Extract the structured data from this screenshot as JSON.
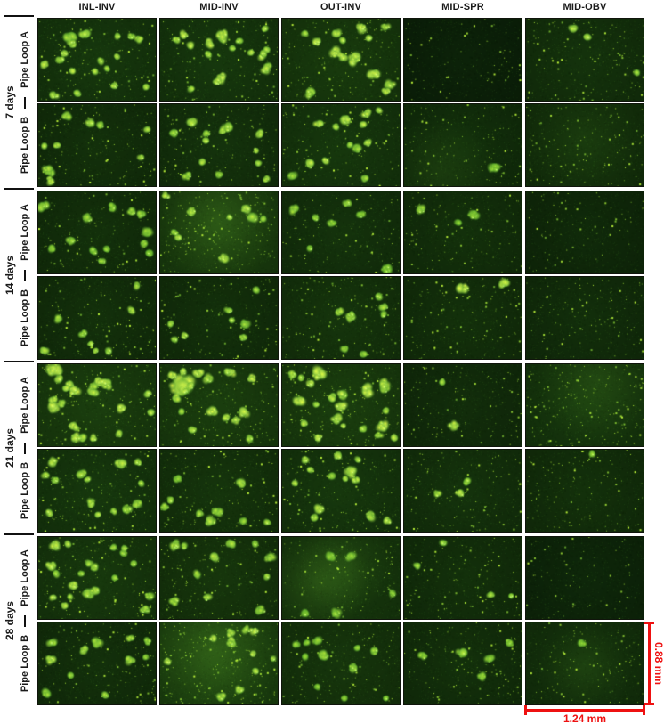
{
  "figure": {
    "columns": [
      "INL-INV",
      "MID-INV",
      "OUT-INV",
      "MID-SPR",
      "MID-OBV"
    ],
    "row_groups": [
      {
        "label": "7 days",
        "rows": [
          "Pipe Loop A",
          "Pipe Loop B"
        ]
      },
      {
        "label": "14 days",
        "rows": [
          "Pipe Loop A",
          "Pipe Loop B"
        ]
      },
      {
        "label": "21 days",
        "rows": [
          "Pipe Loop A",
          "Pipe Loop B"
        ]
      },
      {
        "label": "28 days",
        "rows": [
          "Pipe Loop A",
          "Pipe Loop B"
        ]
      }
    ],
    "scale_bar": {
      "horizontal_label": "1.24 mm",
      "vertical_label": "0.88 mm",
      "color": "#ee1111"
    },
    "colors": {
      "page_background": "#ffffff",
      "label_text": "#1a1a1a",
      "micrograph_dark": "#12290c",
      "micrograph_bright": "#8ce43c"
    },
    "micrographs": [
      {
        "bg": 0.36,
        "sp": 0.55,
        "blobs": 20,
        "bb": 0.92
      },
      {
        "bg": 0.36,
        "sp": 0.5,
        "blobs": 15,
        "bb": 0.95,
        "bigs": [
          [
            0.52,
            0.72,
            5
          ],
          [
            0.42,
            0.3,
            4
          ],
          [
            0.2,
            0.2,
            3.5
          ]
        ]
      },
      {
        "bg": 0.4,
        "sp": 0.5,
        "blobs": 12,
        "bb": 1.0,
        "bigs": [
          [
            0.45,
            0.42,
            6
          ],
          [
            0.62,
            0.5,
            6
          ],
          [
            0.78,
            0.68,
            5
          ],
          [
            0.3,
            0.28,
            4
          ]
        ]
      },
      {
        "bg": 0.1,
        "sp": 0.3,
        "blobs": 0,
        "bb": 0.6
      },
      {
        "bg": 0.3,
        "sp": 0.6,
        "blobs": 1,
        "bb": 0.85,
        "bigs": [
          [
            0.4,
            0.12,
            3
          ],
          [
            0.52,
            0.22,
            3
          ]
        ]
      },
      {
        "bg": 0.28,
        "sp": 0.5,
        "blobs": 10,
        "bb": 0.85
      },
      {
        "bg": 0.3,
        "sp": 0.5,
        "blobs": 13,
        "bb": 0.9
      },
      {
        "bg": 0.36,
        "sp": 0.5,
        "blobs": 11,
        "bb": 0.9,
        "bigs": [
          [
            0.55,
            0.18,
            5
          ],
          [
            0.72,
            0.12,
            4
          ]
        ]
      },
      {
        "bg": 0.26,
        "sp": 0.5,
        "blobs": 1,
        "bb": 0.6,
        "haze": [
          [
            0.3,
            0.85,
            0.5,
            0.12
          ]
        ]
      },
      {
        "bg": 0.28,
        "sp": 0.55,
        "blobs": 0,
        "bb": 0.5,
        "haze": [
          [
            0.5,
            0.4,
            0.6,
            0.08
          ]
        ]
      },
      {
        "bg": 0.28,
        "sp": 0.45,
        "blobs": 9,
        "bb": 0.62,
        "bigs": [
          [
            0.04,
            0.18,
            5
          ],
          [
            0.42,
            0.32,
            4
          ],
          [
            0.28,
            0.6,
            4
          ],
          [
            0.8,
            0.25,
            4
          ]
        ]
      },
      {
        "bg": 0.44,
        "sp": 0.85,
        "blobs": 9,
        "bb": 0.92,
        "haze": [
          [
            0.5,
            0.35,
            0.55,
            0.22
          ]
        ]
      },
      {
        "bg": 0.3,
        "sp": 0.45,
        "blobs": 4,
        "bb": 0.62,
        "bigs": [
          [
            0.1,
            0.22,
            4
          ],
          [
            0.28,
            0.32,
            3
          ],
          [
            0.55,
            0.15,
            3
          ]
        ]
      },
      {
        "bg": 0.28,
        "sp": 0.45,
        "blobs": 2,
        "bb": 0.6,
        "bigs": [
          [
            0.14,
            0.22,
            4
          ],
          [
            0.6,
            0.28,
            4
          ]
        ]
      },
      {
        "bg": 0.2,
        "sp": 0.35,
        "blobs": 0,
        "bb": 0.5
      },
      {
        "bg": 0.28,
        "sp": 0.5,
        "blobs": 8,
        "bb": 0.8
      },
      {
        "bg": 0.28,
        "sp": 0.5,
        "blobs": 8,
        "bb": 0.8
      },
      {
        "bg": 0.32,
        "sp": 0.55,
        "blobs": 6,
        "bb": 0.75,
        "bigs": [
          [
            0.48,
            0.42,
            4
          ],
          [
            0.58,
            0.5,
            4
          ]
        ]
      },
      {
        "bg": 0.28,
        "sp": 0.55,
        "blobs": 1,
        "bb": 1.0,
        "bigs": [
          [
            0.5,
            0.14,
            5
          ]
        ]
      },
      {
        "bg": 0.25,
        "sp": 0.55,
        "blobs": 0,
        "bb": 0.5
      },
      {
        "bg": 0.44,
        "sp": 0.65,
        "blobs": 18,
        "bb": 1.0,
        "bigs": [
          [
            0.14,
            0.07,
            7
          ],
          [
            0.3,
            0.33,
            5
          ],
          [
            0.13,
            0.52,
            5
          ],
          [
            0.52,
            0.22,
            4
          ],
          [
            0.3,
            0.75,
            4
          ]
        ]
      },
      {
        "bg": 0.44,
        "sp": 0.65,
        "blobs": 14,
        "bb": 1.0,
        "bigs": [
          [
            0.18,
            0.26,
            11
          ],
          [
            0.45,
            0.58,
            5
          ],
          [
            0.78,
            0.18,
            4
          ],
          [
            0.6,
            0.1,
            4
          ]
        ]
      },
      {
        "bg": 0.44,
        "sp": 0.65,
        "blobs": 18,
        "bb": 1.0,
        "bigs": [
          [
            0.3,
            0.12,
            6
          ],
          [
            0.72,
            0.32,
            6
          ],
          [
            0.5,
            0.52,
            5
          ],
          [
            0.15,
            0.45,
            5
          ],
          [
            0.85,
            0.75,
            5
          ]
        ]
      },
      {
        "bg": 0.24,
        "sp": 0.45,
        "blobs": 1,
        "bb": 0.9,
        "bigs": [
          [
            0.42,
            0.75,
            4
          ]
        ]
      },
      {
        "bg": 0.36,
        "sp": 0.85,
        "blobs": 0,
        "bb": 0.6,
        "haze": [
          [
            0.62,
            0.2,
            0.55,
            0.16
          ]
        ]
      },
      {
        "bg": 0.36,
        "sp": 0.6,
        "blobs": 12,
        "bb": 0.85,
        "bigs": [
          [
            0.7,
            0.18,
            5
          ],
          [
            0.12,
            0.15,
            4
          ]
        ]
      },
      {
        "bg": 0.32,
        "sp": 0.55,
        "blobs": 9,
        "bb": 0.8
      },
      {
        "bg": 0.36,
        "sp": 0.6,
        "blobs": 12,
        "bb": 0.9,
        "bigs": [
          [
            0.58,
            0.28,
            5
          ],
          [
            0.32,
            0.72,
            4
          ]
        ]
      },
      {
        "bg": 0.3,
        "sp": 0.55,
        "blobs": 2,
        "bb": 0.95,
        "bigs": [
          [
            0.48,
            0.52,
            4
          ]
        ]
      },
      {
        "bg": 0.28,
        "sp": 0.5,
        "blobs": 1,
        "bb": 0.7
      },
      {
        "bg": 0.38,
        "sp": 0.6,
        "blobs": 17,
        "bb": 0.9,
        "bigs": [
          [
            0.15,
            0.1,
            5
          ],
          [
            0.1,
            0.35,
            4
          ],
          [
            0.3,
            0.6,
            4
          ]
        ]
      },
      {
        "bg": 0.34,
        "sp": 0.55,
        "blobs": 12,
        "bb": 0.85
      },
      {
        "bg": 0.38,
        "sp": 0.5,
        "blobs": 5,
        "bb": 0.6,
        "haze": [
          [
            0.3,
            0.55,
            0.45,
            0.2
          ],
          [
            0.55,
            0.35,
            0.4,
            0.12
          ]
        ]
      },
      {
        "bg": 0.28,
        "sp": 0.5,
        "blobs": 4,
        "bb": 0.75
      },
      {
        "bg": 0.16,
        "sp": 0.3,
        "blobs": 0,
        "bb": 0.5
      },
      {
        "bg": 0.28,
        "sp": 0.5,
        "blobs": 10,
        "bb": 0.8,
        "bigs": [
          [
            0.1,
            0.45,
            4
          ]
        ]
      },
      {
        "bg": 0.5,
        "sp": 0.95,
        "blobs": 9,
        "bb": 1.0,
        "haze": [
          [
            0.45,
            0.3,
            0.6,
            0.25
          ]
        ],
        "bigs": [
          [
            0.45,
            0.2,
            3
          ],
          [
            0.6,
            0.22,
            3
          ],
          [
            0.8,
            0.1,
            4
          ]
        ]
      },
      {
        "bg": 0.34,
        "sp": 0.5,
        "blobs": 8,
        "bb": 0.62,
        "bigs": [
          [
            0.35,
            0.4,
            4
          ],
          [
            0.6,
            0.55,
            4
          ],
          [
            0.78,
            0.35,
            4
          ]
        ]
      },
      {
        "bg": 0.28,
        "sp": 0.6,
        "blobs": 5,
        "bb": 0.7
      },
      {
        "bg": 0.3,
        "sp": 0.5,
        "blobs": 1,
        "bb": 0.55,
        "haze": [
          [
            0.5,
            0.55,
            0.4,
            0.1
          ]
        ]
      }
    ]
  }
}
